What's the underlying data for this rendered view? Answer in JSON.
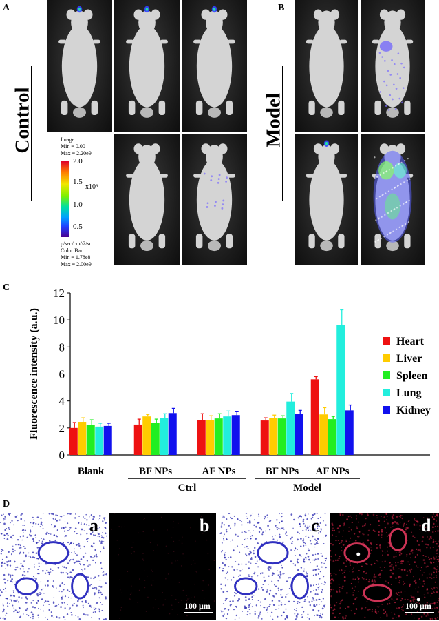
{
  "panels": {
    "a": "A",
    "b": "B",
    "c": "C",
    "d": "D"
  },
  "groups": {
    "control": "Control",
    "model": "Model"
  },
  "colorbar": {
    "image_label": "Image",
    "min_label": "Min = 0.00",
    "max_label": "Max = 2.20e9",
    "ticks": [
      "2.0",
      "1.5",
      "1.0",
      "0.5"
    ],
    "exponent": "x10⁹",
    "units": "p/sec/cm^2/sr",
    "bar_label": "Color Bar",
    "bar_min": "Min = 1.78e8",
    "bar_max": "Max = 2.00e9"
  },
  "colors": {
    "heart": "#ee1111",
    "liver": "#ffcc00",
    "spleen": "#22ee22",
    "lung": "#22eedd",
    "kidney": "#1111ee"
  },
  "chart_data": {
    "type": "bar",
    "ylabel": "Fluorescence intensity (a.u.)",
    "ylim": [
      0,
      12
    ],
    "yticks": [
      "0",
      "2",
      "4",
      "6",
      "8",
      "10",
      "12"
    ],
    "categories": [
      "Blank",
      "BF NPs",
      "AF NPs",
      "BF NPs",
      "AF NPs"
    ],
    "group_labels": [
      {
        "label": "Ctrl",
        "span": [
          1,
          2
        ]
      },
      {
        "label": "Model",
        "span": [
          3,
          4
        ]
      }
    ],
    "series": [
      {
        "name": "Heart",
        "color": "#ee1111",
        "values": [
          2.0,
          2.25,
          2.6,
          2.55,
          5.6
        ],
        "errors": [
          0.4,
          0.4,
          0.45,
          0.2,
          0.2
        ]
      },
      {
        "name": "Liver",
        "color": "#ffcc00",
        "values": [
          2.45,
          2.85,
          2.6,
          2.75,
          3.0
        ],
        "errors": [
          0.3,
          0.15,
          0.3,
          0.2,
          0.5
        ]
      },
      {
        "name": "Spleen",
        "color": "#22ee22",
        "values": [
          2.2,
          2.35,
          2.7,
          2.7,
          2.65
        ],
        "errors": [
          0.4,
          0.3,
          0.35,
          0.2,
          0.2
        ]
      },
      {
        "name": "Lung",
        "color": "#22eedd",
        "values": [
          2.1,
          2.75,
          2.85,
          3.95,
          9.65
        ],
        "errors": [
          0.25,
          0.3,
          0.4,
          0.6,
          1.1
        ]
      },
      {
        "name": "Kidney",
        "color": "#1111ee",
        "values": [
          2.15,
          3.1,
          2.95,
          3.05,
          3.3
        ],
        "errors": [
          0.2,
          0.35,
          0.25,
          0.25,
          0.4
        ]
      }
    ],
    "legend_position": "right"
  },
  "micrographs": {
    "labels": [
      "a",
      "b",
      "c",
      "d"
    ],
    "scale_label": "100 μm"
  }
}
